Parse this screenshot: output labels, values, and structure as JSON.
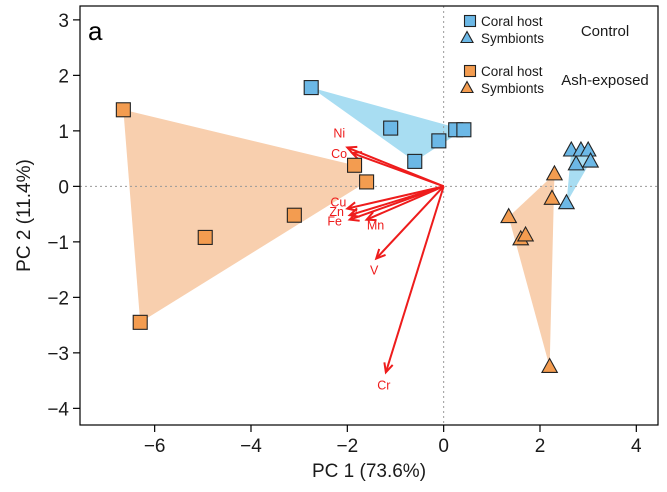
{
  "chart_data": {
    "type": "scatter",
    "panel_label": "a",
    "xlabel": "PC 1 (73.6%)",
    "ylabel": "PC 2 (11.4%)",
    "xlim": [
      -7.55,
      4.45
    ],
    "ylim": [
      -4.3,
      3.25
    ],
    "xticks": [
      -6,
      -4,
      -2,
      0,
      2,
      4
    ],
    "yticks": [
      -4,
      -3,
      -2,
      -1,
      0,
      1,
      2,
      3
    ],
    "xtick_labels": [
      "−6",
      "−4",
      "−2",
      "0",
      "2",
      "4"
    ],
    "ytick_labels": [
      "−4",
      "−3",
      "−2",
      "−1",
      "0",
      "1",
      "2",
      "3"
    ],
    "reference_lines": {
      "x": 0,
      "y": 0,
      "style": "dotted",
      "color": "#999999"
    },
    "colors": {
      "control": "#6cb8e6",
      "control_fill": "#a8ddf2",
      "ash": "#f39c50",
      "ash_fill": "#f8cfae",
      "loading": "#ee1c1c",
      "marker_edge": "#222222"
    },
    "legend": {
      "position": "top-right",
      "groups": [
        {
          "group_label": "Control",
          "entries": [
            {
              "label": "Coral host",
              "marker": "square",
              "color": "#6cb8e6"
            },
            {
              "label": "Symbionts",
              "marker": "triangle",
              "color": "#6cb8e6"
            }
          ]
        },
        {
          "group_label": "Ash-exposed",
          "entries": [
            {
              "label": "Coral host",
              "marker": "square",
              "color": "#f39c50"
            },
            {
              "label": "Symbionts",
              "marker": "triangle",
              "color": "#f39c50"
            }
          ]
        }
      ]
    },
    "series": [
      {
        "group": "Control",
        "type": "Coral host",
        "marker": "square",
        "color": "#6cb8e6",
        "hull_fill": "#a8ddf2",
        "points": [
          [
            -2.75,
            1.78
          ],
          [
            -1.1,
            1.05
          ],
          [
            -0.6,
            0.45
          ],
          [
            -0.1,
            0.82
          ],
          [
            0.25,
            1.02
          ],
          [
            0.42,
            1.02
          ]
        ]
      },
      {
        "group": "Control",
        "type": "Symbionts",
        "marker": "triangle",
        "color": "#6cb8e6",
        "hull_fill": "#a8ddf2",
        "points": [
          [
            2.55,
            -0.3
          ],
          [
            2.65,
            0.65
          ],
          [
            2.75,
            0.4
          ],
          [
            2.85,
            0.65
          ],
          [
            3.0,
            0.65
          ],
          [
            3.05,
            0.45
          ]
        ]
      },
      {
        "group": "Ash-exposed",
        "type": "Coral host",
        "marker": "square",
        "color": "#f39c50",
        "hull_fill": "#f8cfae",
        "points": [
          [
            -6.65,
            1.38
          ],
          [
            -6.3,
            -2.45
          ],
          [
            -4.95,
            -0.92
          ],
          [
            -3.1,
            -0.52
          ],
          [
            -1.85,
            0.38
          ],
          [
            -1.6,
            0.08
          ]
        ]
      },
      {
        "group": "Ash-exposed",
        "type": "Symbionts",
        "marker": "triangle",
        "color": "#f39c50",
        "hull_fill": "#f8cfae",
        "points": [
          [
            2.3,
            0.22
          ],
          [
            2.25,
            -0.22
          ],
          [
            1.35,
            -0.55
          ],
          [
            1.6,
            -0.95
          ],
          [
            1.7,
            -0.88
          ],
          [
            2.2,
            -3.25
          ]
        ]
      }
    ],
    "loadings": [
      {
        "name": "Ni",
        "x": -2.0,
        "y": 0.7
      },
      {
        "name": "Co",
        "x": -1.9,
        "y": 0.6
      },
      {
        "name": "Cu",
        "x": -2.0,
        "y": -0.4
      },
      {
        "name": "Zn",
        "x": -1.95,
        "y": -0.52
      },
      {
        "name": "Fe",
        "x": -1.95,
        "y": -0.6
      },
      {
        "name": "Mn",
        "x": -1.6,
        "y": -0.6
      },
      {
        "name": "V",
        "x": -1.4,
        "y": -1.3
      },
      {
        "name": "Cr",
        "x": -1.2,
        "y": -3.35
      }
    ]
  }
}
